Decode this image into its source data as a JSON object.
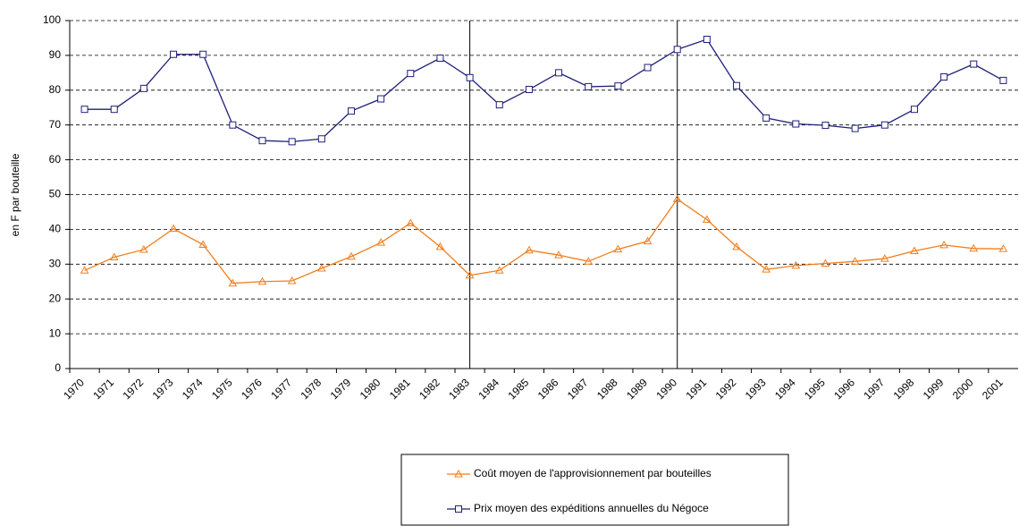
{
  "chart_data": {
    "type": "line",
    "y_label": "en F par bouteille",
    "categories": [
      "1970",
      "1971",
      "1972",
      "1973",
      "1974",
      "1975",
      "1976",
      "1977",
      "1978",
      "1979",
      "1980",
      "1981",
      "1982",
      "1983",
      "1984",
      "1985",
      "1986",
      "1987",
      "1988",
      "1989",
      "1990",
      "1991",
      "1992",
      "1993",
      "1994",
      "1995",
      "1996",
      "1997",
      "1998",
      "1999",
      "2000",
      "2001"
    ],
    "series": [
      {
        "name": "Coût moyen de l'approvisionnement par bouteilles",
        "color": "#f07f1e",
        "marker": "triangle",
        "values": [
          28.2,
          32,
          34.2,
          40.2,
          35.6,
          24.5,
          25,
          25.2,
          28.8,
          32.2,
          36.2,
          41.8,
          35,
          26.8,
          28.2,
          34,
          32.6,
          30.8,
          34.3,
          36.6,
          48.7,
          42.8,
          35,
          28.5,
          29.6,
          30.2,
          30.8,
          31.6,
          33.8,
          35.5,
          34.5,
          34.4
        ]
      },
      {
        "name": "Prix moyen des expéditions annuelles du Négoce",
        "color": "#1f1f7a",
        "marker": "square",
        "values": [
          74.5,
          74.5,
          80.5,
          90.3,
          90.3,
          70,
          65.5,
          65.2,
          66,
          74,
          77.5,
          84.8,
          89.2,
          83.6,
          75.8,
          80.2,
          85,
          81,
          81.2,
          86.5,
          91.7,
          94.6,
          81.3,
          72,
          70.3,
          69.9,
          69,
          70,
          74.5,
          83.8,
          87.5,
          82.8
        ]
      }
    ],
    "vlines": [
      "1983",
      "1990"
    ],
    "ylim": [
      0,
      100
    ],
    "yticks": [
      0,
      10,
      20,
      30,
      40,
      50,
      60,
      70,
      80,
      90,
      100
    ],
    "grid": true
  }
}
